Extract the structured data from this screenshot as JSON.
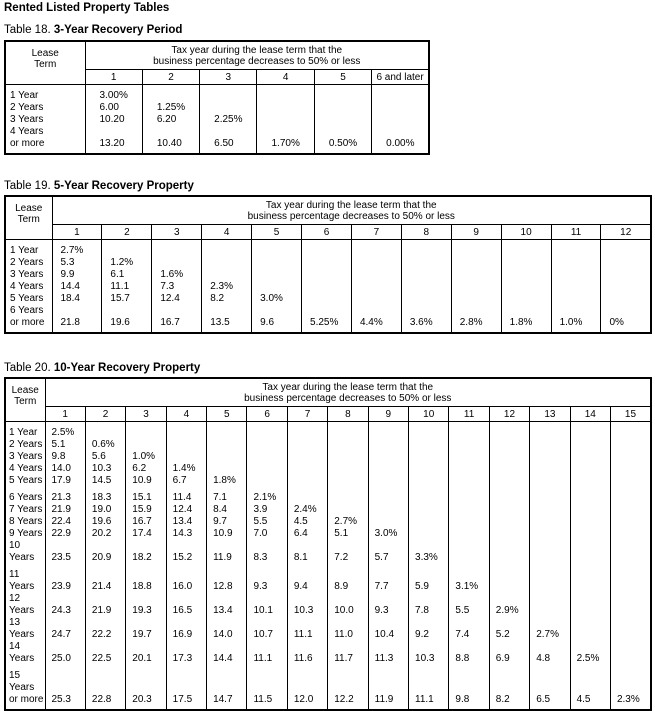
{
  "page_title": "Rented Listed Property Tables",
  "tables": [
    {
      "id": "t18",
      "number": "Table 18.",
      "title": "3-Year Recovery Period",
      "lease_header": "Lease\nTerm",
      "span_header": "Tax year during the lease term that the\nbusiness percentage decreases to 50% or less",
      "columns": [
        "1",
        "2",
        "3",
        "4",
        "5",
        "6 and later"
      ],
      "rows": [
        {
          "term": "1 Year",
          "values": [
            "3.00%",
            "",
            "",
            "",
            "",
            ""
          ]
        },
        {
          "term": "2 Years",
          "values": [
            "6.00",
            "1.25%",
            "",
            "",
            "",
            ""
          ]
        },
        {
          "term": "3 Years",
          "values": [
            "10.20",
            "6.20",
            "2.25%",
            "",
            "",
            ""
          ]
        },
        {
          "term": "4 Years\nor more",
          "values": [
            "13.20",
            "10.40",
            "6.50",
            "1.70%",
            "0.50%",
            "0.00%"
          ]
        }
      ]
    },
    {
      "id": "t19",
      "number": "Table 19.",
      "title": "5-Year Recovery Property",
      "lease_header": "Lease\nTerm",
      "span_header": "Tax year during the lease term that the\nbusiness percentage decreases to 50% or less",
      "columns": [
        "1",
        "2",
        "3",
        "4",
        "5",
        "6",
        "7",
        "8",
        "9",
        "10",
        "11",
        "12"
      ],
      "rows": [
        {
          "term": "1 Year",
          "values": [
            "2.7%",
            "",
            "",
            "",
            "",
            "",
            "",
            "",
            "",
            "",
            "",
            ""
          ]
        },
        {
          "term": "2 Years",
          "values": [
            "5.3",
            "1.2%",
            "",
            "",
            "",
            "",
            "",
            "",
            "",
            "",
            "",
            ""
          ]
        },
        {
          "term": "3 Years",
          "values": [
            "9.9",
            "6.1",
            "1.6%",
            "",
            "",
            "",
            "",
            "",
            "",
            "",
            "",
            ""
          ]
        },
        {
          "term": "4 Years",
          "values": [
            "14.4",
            "11.1",
            "7.3",
            "2.3%",
            "",
            "",
            "",
            "",
            "",
            "",
            "",
            ""
          ]
        },
        {
          "term": "5 Years",
          "values": [
            "18.4",
            "15.7",
            "12.4",
            "8.2",
            "3.0%",
            "",
            "",
            "",
            "",
            "",
            "",
            ""
          ]
        },
        {
          "term": "6 Years\nor more",
          "values": [
            "21.8",
            "19.6",
            "16.7",
            "13.5",
            "9.6",
            "5.25%",
            "4.4%",
            "3.6%",
            "2.8%",
            "1.8%",
            "1.0%",
            "0%"
          ]
        }
      ]
    },
    {
      "id": "t20",
      "number": "Table 20.",
      "title": "10-Year Recovery Property",
      "lease_header": "Lease\nTerm",
      "span_header": "Tax year during the lease term that the\nbusiness percentage decreases to 50% or less",
      "columns": [
        "1",
        "2",
        "3",
        "4",
        "5",
        "6",
        "7",
        "8",
        "9",
        "10",
        "11",
        "12",
        "13",
        "14",
        "15"
      ],
      "rows": [
        {
          "term": "1 Year",
          "values": [
            "2.5%",
            "",
            "",
            "",
            "",
            "",
            "",
            "",
            "",
            "",
            "",
            "",
            "",
            "",
            ""
          ]
        },
        {
          "term": "2 Years",
          "values": [
            "5.1",
            "0.6%",
            "",
            "",
            "",
            "",
            "",
            "",
            "",
            "",
            "",
            "",
            "",
            "",
            ""
          ]
        },
        {
          "term": "3 Years",
          "values": [
            "9.8",
            "5.6",
            "1.0%",
            "",
            "",
            "",
            "",
            "",
            "",
            "",
            "",
            "",
            "",
            "",
            ""
          ]
        },
        {
          "term": "4 Years",
          "values": [
            "14.0",
            "10.3",
            "6.2",
            "1.4%",
            "",
            "",
            "",
            "",
            "",
            "",
            "",
            "",
            "",
            "",
            ""
          ]
        },
        {
          "term": "5 Years",
          "values": [
            "17.9",
            "14.5",
            "10.9",
            "6.7",
            "1.8%",
            "",
            "",
            "",
            "",
            "",
            "",
            "",
            "",
            "",
            ""
          ]
        },
        {
          "term": "6 Years",
          "values": [
            "21.3",
            "18.3",
            "15.1",
            "11.4",
            "7.1",
            "2.1%",
            "",
            "",
            "",
            "",
            "",
            "",
            "",
            "",
            ""
          ]
        },
        {
          "term": "7 Years",
          "values": [
            "21.9",
            "19.0",
            "15.9",
            "12.4",
            "8.4",
            "3.9",
            "2.4%",
            "",
            "",
            "",
            "",
            "",
            "",
            "",
            ""
          ]
        },
        {
          "term": "8 Years",
          "values": [
            "22.4",
            "19.6",
            "16.7",
            "13.4",
            "9.7",
            "5.5",
            "4.5",
            "2.7%",
            "",
            "",
            "",
            "",
            "",
            "",
            ""
          ]
        },
        {
          "term": "9 Years",
          "values": [
            "22.9",
            "20.2",
            "17.4",
            "14.3",
            "10.9",
            "7.0",
            "6.4",
            "5.1",
            "3.0%",
            "",
            "",
            "",
            "",
            "",
            ""
          ]
        },
        {
          "term": "10 Years",
          "values": [
            "23.5",
            "20.9",
            "18.2",
            "15.2",
            "11.9",
            "8.3",
            "8.1",
            "7.2",
            "5.7",
            "3.3%",
            "",
            "",
            "",
            "",
            ""
          ]
        },
        {
          "term": "11 Years",
          "values": [
            "23.9",
            "21.4",
            "18.8",
            "16.0",
            "12.8",
            "9.3",
            "9.4",
            "8.9",
            "7.7",
            "5.9",
            "3.1%",
            "",
            "",
            "",
            ""
          ]
        },
        {
          "term": "12 Years",
          "values": [
            "24.3",
            "21.9",
            "19.3",
            "16.5",
            "13.4",
            "10.1",
            "10.3",
            "10.0",
            "9.3",
            "7.8",
            "5.5",
            "2.9%",
            "",
            "",
            ""
          ]
        },
        {
          "term": "13 Years",
          "values": [
            "24.7",
            "22.2",
            "19.7",
            "16.9",
            "14.0",
            "10.7",
            "11.1",
            "11.0",
            "10.4",
            "9.2",
            "7.4",
            "5.2",
            "2.7%",
            "",
            ""
          ]
        },
        {
          "term": "14 Years",
          "values": [
            "25.0",
            "22.5",
            "20.1",
            "17.3",
            "14.4",
            "11.1",
            "11.6",
            "11.7",
            "11.3",
            "10.3",
            "8.8",
            "6.9",
            "4.8",
            "2.5%",
            ""
          ]
        },
        {
          "term": "15 Years\nor more",
          "values": [
            "25.3",
            "22.8",
            "20.3",
            "17.5",
            "14.7",
            "11.5",
            "12.0",
            "12.2",
            "11.9",
            "11.1",
            "9.8",
            "8.2",
            "6.5",
            "4.5",
            "2.3%"
          ]
        }
      ]
    }
  ]
}
